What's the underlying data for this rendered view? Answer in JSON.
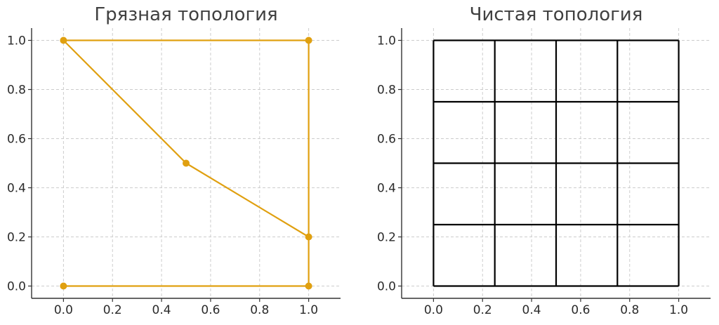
{
  "chart_data": [
    {
      "type": "line",
      "title": "Грязная топология",
      "xlim": [
        -0.13,
        1.13
      ],
      "ylim": [
        -0.05,
        1.05
      ],
      "xticks": [
        "0.0",
        "0.2",
        "0.4",
        "0.6",
        "0.8",
        "1.0"
      ],
      "yticks": [
        "0.0",
        "0.2",
        "0.4",
        "0.6",
        "0.8",
        "1.0"
      ],
      "grid": true,
      "color": "#E0A010",
      "series": [
        {
          "x": [
            0,
            1
          ],
          "y": [
            0,
            0
          ]
        },
        {
          "x": [
            1,
            1
          ],
          "y": [
            0,
            0.2
          ]
        },
        {
          "x": [
            1,
            0.5,
            0
          ],
          "y": [
            0.2,
            0.5,
            1
          ]
        },
        {
          "x": [
            0,
            1
          ],
          "y": [
            1,
            1
          ]
        },
        {
          "x": [
            1,
            1
          ],
          "y": [
            1,
            0.2
          ]
        }
      ],
      "points": {
        "x": [
          0,
          1,
          0.5,
          1,
          0,
          1
        ],
        "y": [
          0,
          0,
          0.5,
          0.2,
          1,
          1
        ]
      }
    },
    {
      "type": "line",
      "title": "Чистая топология",
      "xlim": [
        -0.13,
        1.13
      ],
      "ylim": [
        -0.05,
        1.05
      ],
      "xticks": [
        "0.0",
        "0.2",
        "0.4",
        "0.6",
        "0.8",
        "1.0"
      ],
      "yticks": [
        "0.0",
        "0.2",
        "0.4",
        "0.6",
        "0.8",
        "1.0"
      ],
      "grid": true,
      "color": "#000000",
      "lines": {
        "vertical_x": [
          0,
          0.25,
          0.5,
          0.75,
          1
        ],
        "horizontal_y": [
          0,
          0.25,
          0.5,
          0.75,
          1
        ]
      }
    }
  ]
}
